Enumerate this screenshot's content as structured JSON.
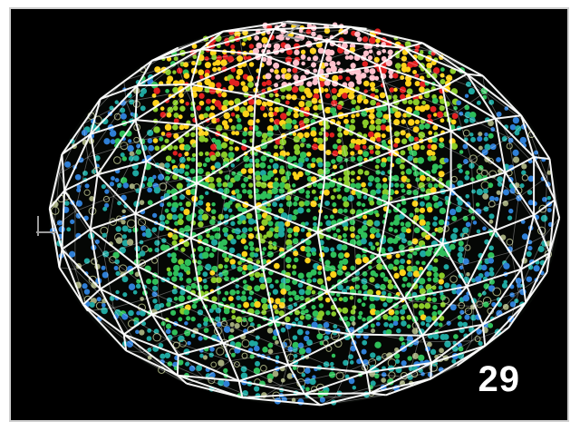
{
  "image": {
    "subject": "geodesic-sphere-data-visualization",
    "background": "#000000",
    "wireframe_color": "#ffffff",
    "heatmap_colors": [
      "#ffc0cb",
      "#e02020",
      "#ffd21a",
      "#8acb2a",
      "#2fbf5a",
      "#1fa7a0",
      "#2f7fd6",
      "#a0a87a"
    ]
  },
  "overlay": {
    "slide_number": "29"
  }
}
